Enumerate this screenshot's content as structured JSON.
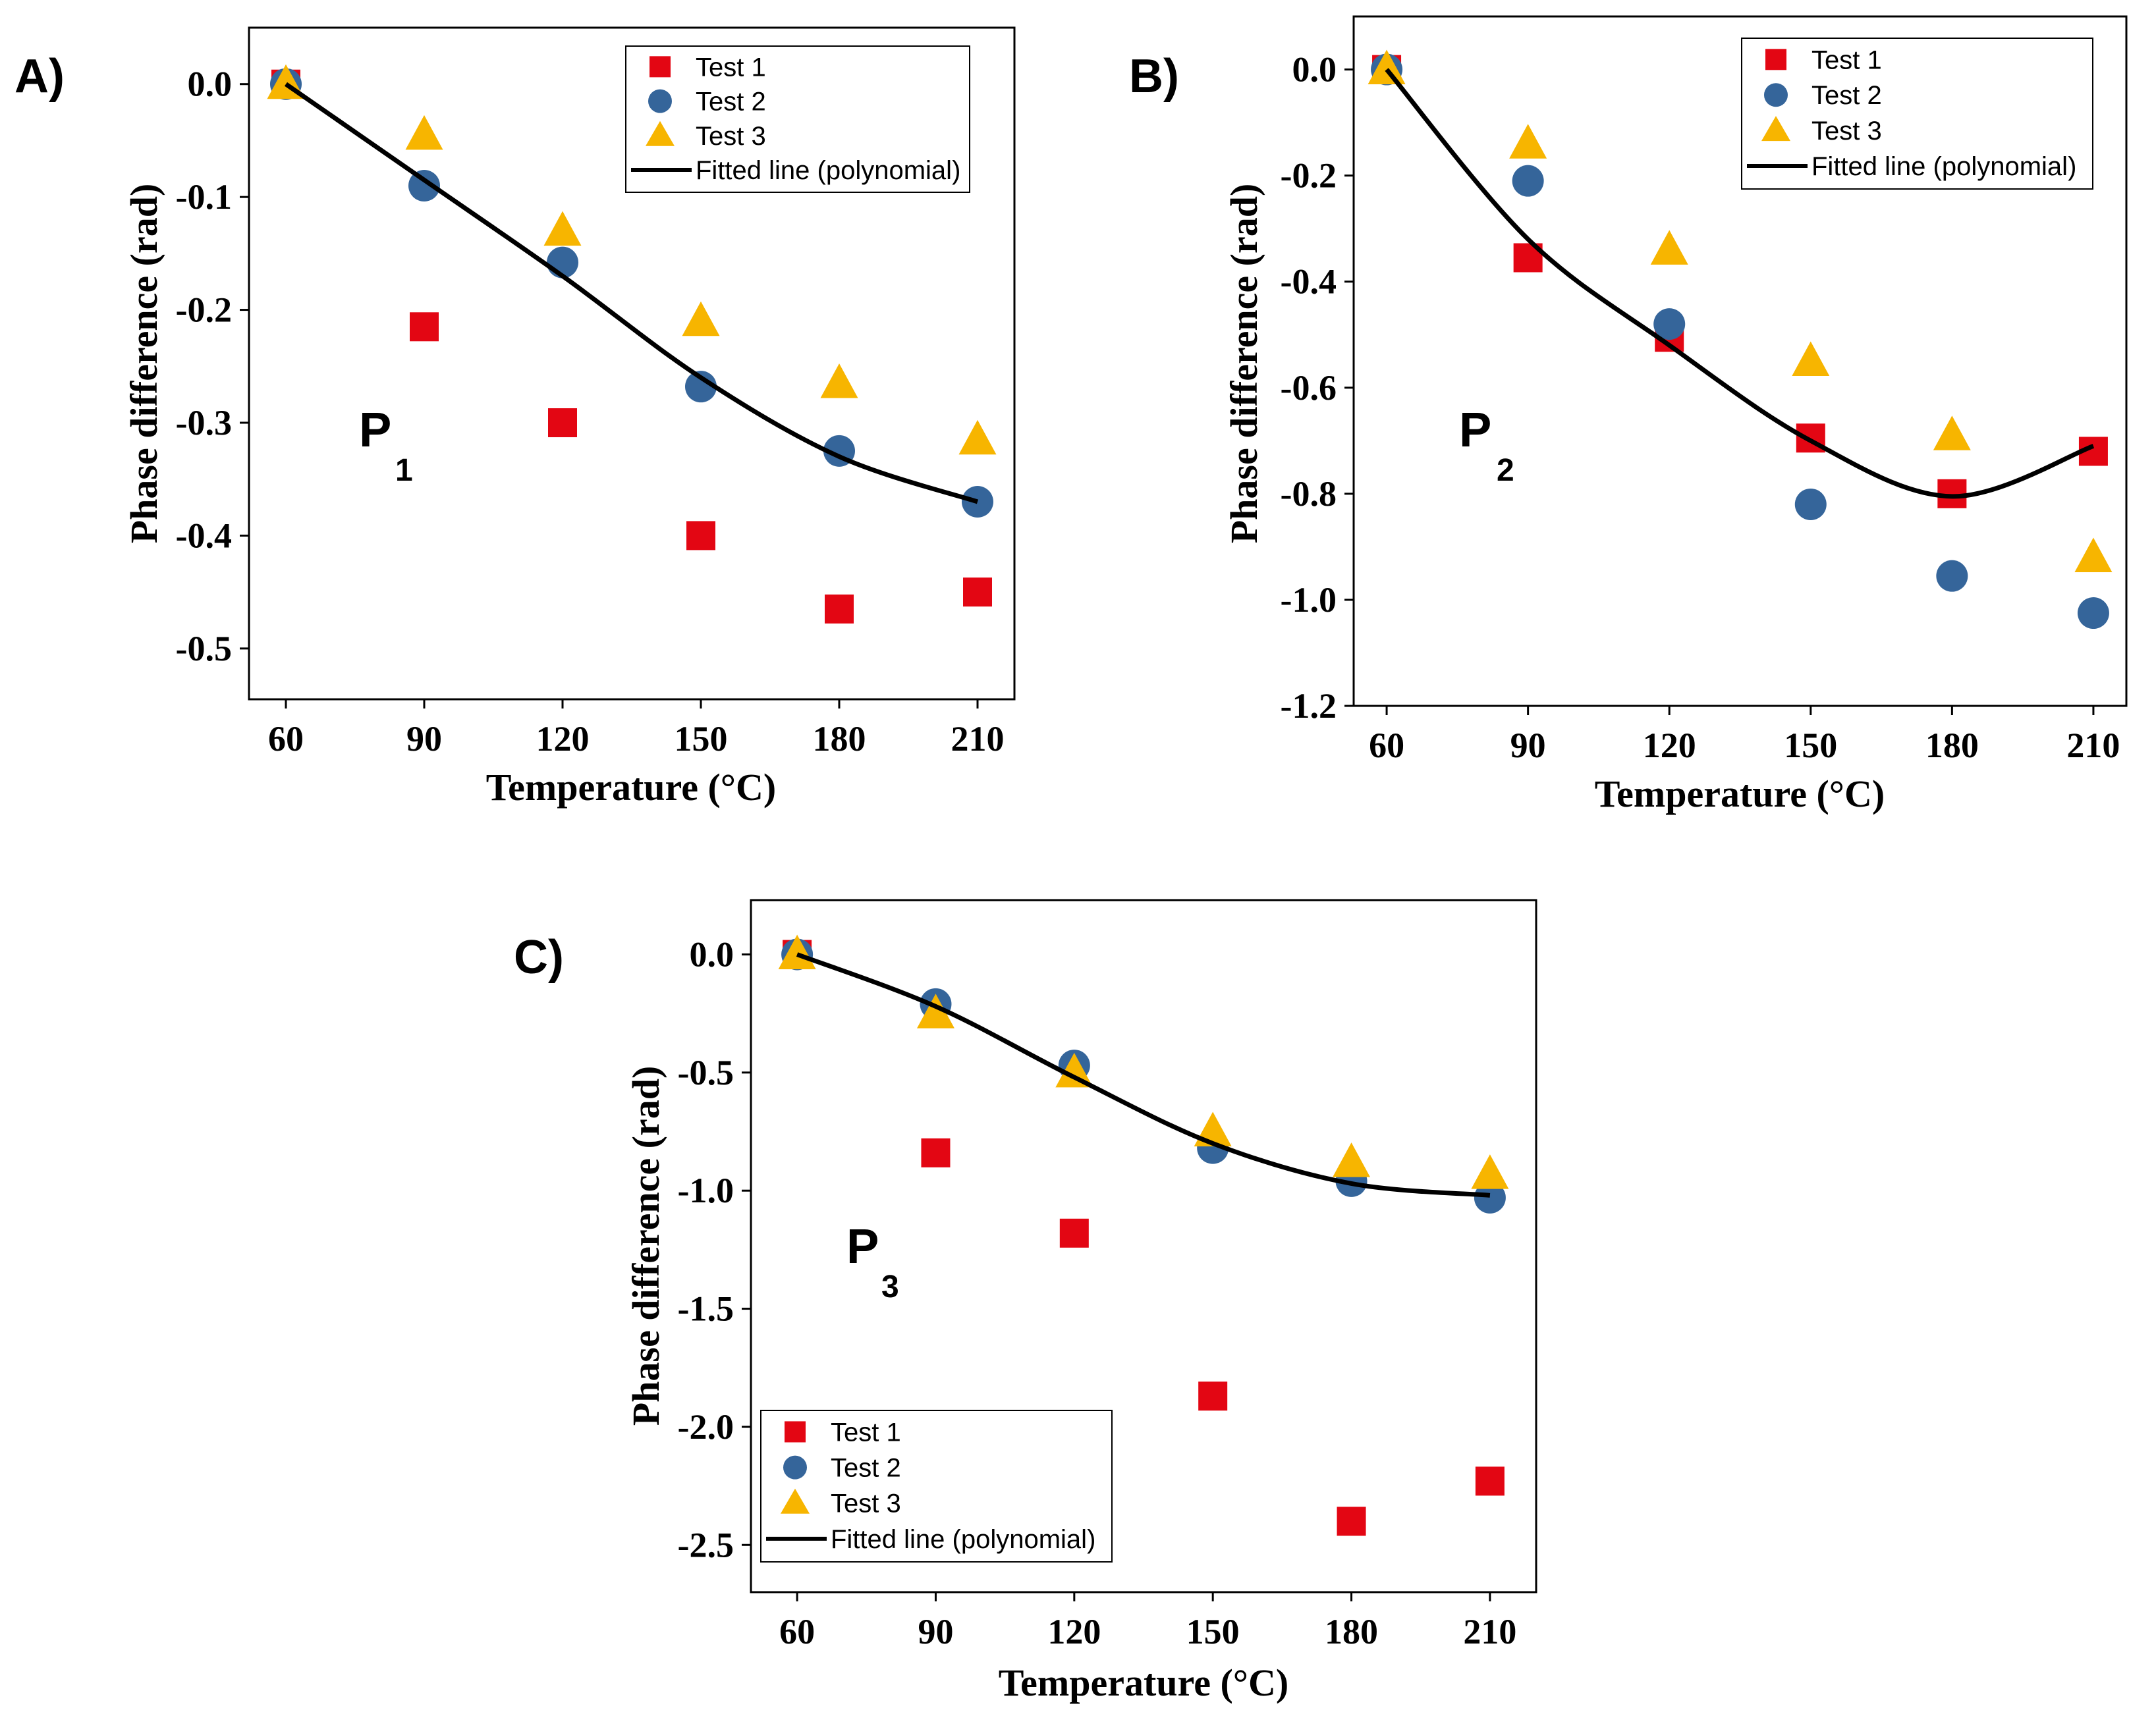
{
  "colors": {
    "test1": "#e30613",
    "test2": "#35659a",
    "test3": "#f7b500",
    "fit": "#000000"
  },
  "legend_labels": [
    "Test 1",
    "Test 2",
    "Test 3",
    "Fitted line (polynomial)"
  ],
  "chart_data": [
    {
      "id": "A",
      "panel_label": "A)",
      "type": "scatter",
      "title": "",
      "annotation": {
        "main": "P",
        "sub": "1"
      },
      "xlabel": "Temperature (°C)",
      "ylabel": "Phase difference (rad)",
      "x": [
        60,
        90,
        120,
        150,
        180,
        210
      ],
      "x_tick_labels": [
        "60",
        "90",
        "120",
        "150",
        "180",
        "210"
      ],
      "xlim": [
        52,
        218
      ],
      "ylim": [
        -0.545,
        0.05
      ],
      "y_ticks": [
        0.0,
        -0.1,
        -0.2,
        -0.3,
        -0.4,
        -0.5
      ],
      "y_tick_labels": [
        "0.0",
        "-0.1",
        "-0.2",
        "-0.3",
        "-0.4",
        "-0.5"
      ],
      "legend_position": "top-right",
      "series": [
        {
          "name": "Test 1",
          "marker": "square",
          "values": [
            0.0,
            -0.215,
            -0.3,
            -0.4,
            -0.465,
            -0.45
          ]
        },
        {
          "name": "Test 2",
          "marker": "circle",
          "values": [
            0.0,
            -0.09,
            -0.158,
            -0.268,
            -0.325,
            -0.37
          ]
        },
        {
          "name": "Test 3",
          "marker": "triangle",
          "values": [
            0.0,
            -0.045,
            -0.13,
            -0.21,
            -0.265,
            -0.315
          ]
        },
        {
          "name": "Fitted line (polynomial)",
          "marker": "line",
          "values": [
            0.0,
            -0.085,
            -0.17,
            -0.26,
            -0.33,
            -0.37
          ]
        }
      ]
    },
    {
      "id": "B",
      "panel_label": "B)",
      "type": "scatter",
      "title": "",
      "annotation": {
        "main": "P",
        "sub": "2"
      },
      "xlabel": "Temperature (°C)",
      "ylabel": "Phase difference (rad)",
      "x": [
        60,
        90,
        120,
        150,
        180,
        210
      ],
      "x_tick_labels": [
        "60",
        "90",
        "120",
        "150",
        "180",
        "210"
      ],
      "xlim": [
        53,
        217
      ],
      "ylim": [
        -1.2,
        0.1
      ],
      "y_ticks": [
        0.0,
        -0.2,
        -0.4,
        -0.6,
        -0.8,
        -1.0,
        -1.2
      ],
      "y_tick_labels": [
        "0.0",
        "-0.2",
        "-0.4",
        "-0.6",
        "-0.8",
        "-1.0",
        "-1.2"
      ],
      "legend_position": "top-right",
      "series": [
        {
          "name": "Test 1",
          "marker": "square",
          "values": [
            0.0,
            -0.355,
            -0.505,
            -0.695,
            -0.8,
            -0.72
          ]
        },
        {
          "name": "Test 2",
          "marker": "circle",
          "values": [
            0.0,
            -0.21,
            -0.48,
            -0.82,
            -0.955,
            -1.025
          ]
        },
        {
          "name": "Test 3",
          "marker": "triangle",
          "values": [
            0.0,
            -0.14,
            -0.34,
            -0.55,
            -0.69,
            -0.92
          ]
        },
        {
          "name": "Fitted line (polynomial)",
          "marker": "line",
          "values": [
            0.0,
            -0.32,
            -0.52,
            -0.7,
            -0.805,
            -0.71
          ]
        }
      ]
    },
    {
      "id": "C",
      "panel_label": "C)",
      "type": "scatter",
      "title": "",
      "annotation": {
        "main": "P",
        "sub": "3"
      },
      "xlabel": "Temperature (°C)",
      "ylabel": "Phase difference (rad)",
      "x": [
        60,
        90,
        120,
        150,
        180,
        210
      ],
      "x_tick_labels": [
        "60",
        "90",
        "120",
        "150",
        "180",
        "210"
      ],
      "xlim": [
        50,
        220
      ],
      "ylim": [
        -2.7,
        0.23
      ],
      "y_ticks": [
        0.0,
        -0.5,
        -1.0,
        -1.5,
        -2.0,
        -2.5
      ],
      "y_tick_labels": [
        "0.0",
        "-0.5",
        "-1.0",
        "-1.5",
        "-2.0",
        "-2.5"
      ],
      "legend_position": "bottom-left",
      "series": [
        {
          "name": "Test 1",
          "marker": "square",
          "values": [
            0.0,
            -0.84,
            -1.18,
            -1.87,
            -2.4,
            -2.23
          ]
        },
        {
          "name": "Test 2",
          "marker": "circle",
          "values": [
            0.0,
            -0.21,
            -0.47,
            -0.82,
            -0.96,
            -1.03
          ]
        },
        {
          "name": "Test 3",
          "marker": "triangle",
          "values": [
            0.0,
            -0.25,
            -0.5,
            -0.75,
            -0.88,
            -0.93
          ]
        },
        {
          "name": "Fitted line (polynomial)",
          "marker": "line",
          "values": [
            0.0,
            -0.22,
            -0.52,
            -0.8,
            -0.97,
            -1.02
          ]
        }
      ]
    }
  ]
}
